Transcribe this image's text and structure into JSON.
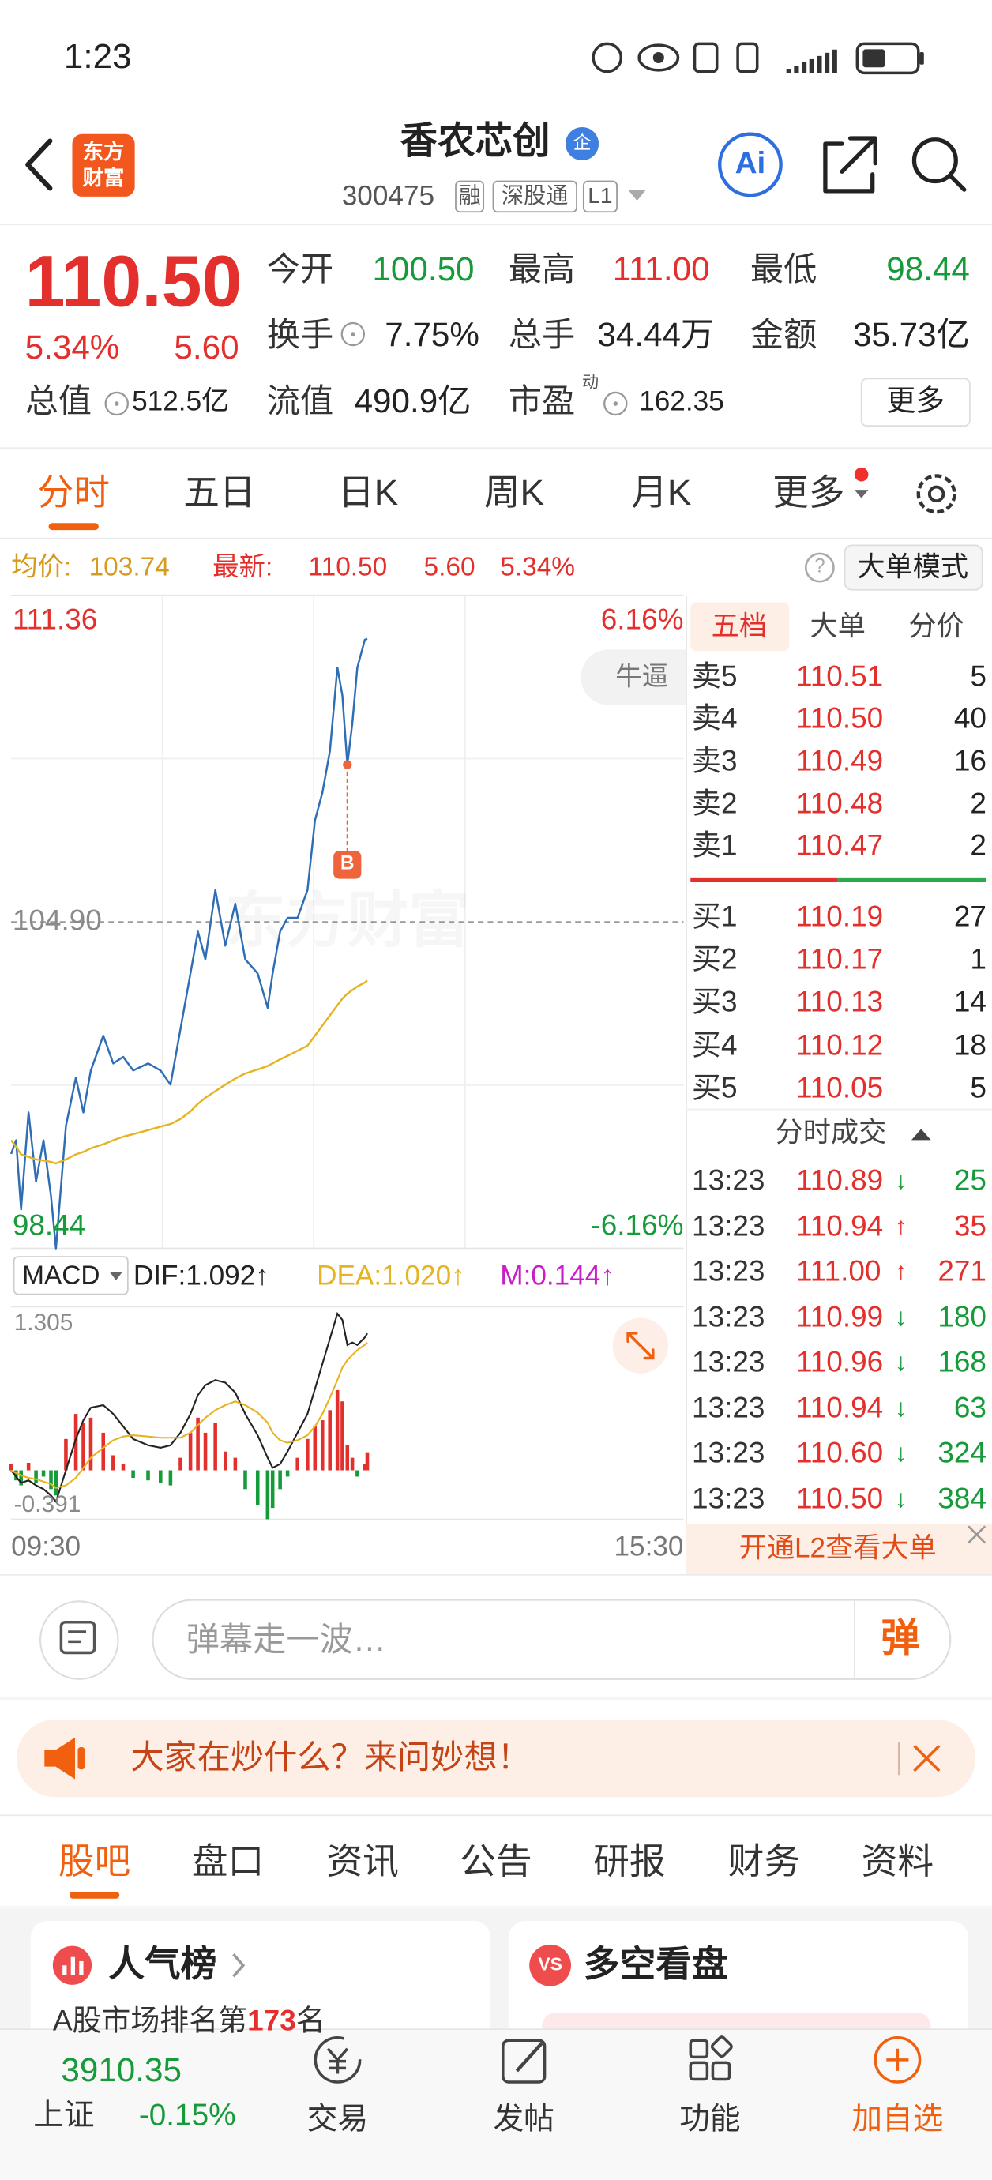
{
  "status_bar": {
    "time": "1:23"
  },
  "header": {
    "logo": [
      "东方",
      "财富"
    ],
    "title": "香农芯创",
    "badge": "企",
    "code": "300475",
    "tags": [
      "融",
      "深股通",
      "L1"
    ],
    "ai": "Ai"
  },
  "quote": {
    "price": "110.50",
    "change_pct": "5.34%",
    "change": "5.60",
    "stats": [
      {
        "label": "今开",
        "value": "100.50",
        "tone": "down"
      },
      {
        "label": "最高",
        "value": "111.00",
        "tone": "up"
      },
      {
        "label": "最低",
        "value": "98.44",
        "tone": "down"
      },
      {
        "label": "换手",
        "value": "7.75%"
      },
      {
        "label": "总手",
        "value": "34.44万"
      },
      {
        "label": "金额",
        "value": "35.73亿"
      },
      {
        "label": "总值",
        "value": "512.5亿"
      },
      {
        "label": "流值",
        "value": "490.9亿"
      },
      {
        "label": "市盈",
        "mark": "动",
        "value": "162.35"
      }
    ],
    "more": "更多"
  },
  "tabs": {
    "items": [
      "分时",
      "五日",
      "日K",
      "周K",
      "月K",
      "更多"
    ],
    "active": 0
  },
  "info": {
    "avg": "103.74",
    "last": "110.50",
    "change": "5.60",
    "change_pct": "5.34%",
    "help": "?",
    "mode": "大单模式"
  },
  "chart_data": [
    {
      "type": "line",
      "x": [
        "09:30",
        "09:32",
        "09:34",
        "09:37",
        "09:40",
        "09:43",
        "09:46",
        "09:48",
        "09:52",
        "09:56",
        "09:59",
        "10:02",
        "10:07",
        "10:11",
        "10:15",
        "10:19",
        "10:25",
        "10:30",
        "10:34",
        "10:38",
        "10:42",
        "10:45",
        "10:48",
        "10:52",
        "10:56",
        "11:00",
        "11:04",
        "11:09",
        "11:13",
        "11:15",
        "11:18",
        "11:21",
        "11:25",
        "11:29",
        "13:02",
        "13:05",
        "13:08",
        "13:11",
        "13:13",
        "13:15",
        "13:17",
        "13:19",
        "13:22",
        "13:23"
      ],
      "series": [
        {
          "name": "最新:",
          "color": "#2f6db5",
          "values": [
            100.31,
            100.58,
            99.21,
            101.13,
            99.76,
            100.58,
            99.48,
            98.44,
            100.86,
            101.82,
            101.13,
            101.96,
            102.65,
            102.1,
            102.23,
            101.96,
            102.1,
            101.96,
            101.68,
            102.78,
            103.88,
            104.71,
            104.16,
            105.53,
            104.43,
            105.26,
            104.16,
            103.88,
            103.2,
            103.88,
            104.71,
            104.98,
            104.98,
            105.53,
            106.91,
            107.46,
            108.28,
            109.93,
            109.38,
            108.01,
            108.83,
            109.93,
            110.48,
            110.5
          ]
        },
        {
          "name": "均价:",
          "color": "#e6b422",
          "values": [
            100.58,
            100.45,
            100.3,
            100.25,
            100.2,
            100.18,
            100.15,
            100.12,
            100.2,
            100.3,
            100.35,
            100.42,
            100.5,
            100.58,
            100.65,
            100.7,
            100.78,
            100.85,
            100.9,
            101.0,
            101.15,
            101.3,
            101.42,
            101.55,
            101.68,
            101.8,
            101.9,
            101.98,
            102.05,
            102.1,
            102.18,
            102.25,
            102.35,
            102.45,
            102.65,
            102.85,
            103.05,
            103.25,
            103.38,
            103.48,
            103.55,
            103.62,
            103.7,
            103.74
          ]
        }
      ],
      "xlim": [
        "09:30",
        "15:30"
      ],
      "ylim": [
        98.44,
        111.36
      ],
      "yticks": [
        98.44,
        {
          "value": 104.9,
          "label": "104.90"
        },
        111.36
      ],
      "y2lim": [
        -6.16,
        6.16
      ],
      "y2ticks": [
        {
          "value": -6.16,
          "label": "-6.16%"
        },
        {
          "value": 6.16,
          "label": "6.16%"
        }
      ],
      "annotations": [
        {
          "text": "B",
          "x": "13:15"
        }
      ],
      "grid": true
    },
    {
      "type": "bar",
      "title": "MACD",
      "x": [
        "09:30",
        "09:32",
        "09:34",
        "09:37",
        "09:40",
        "09:43",
        "09:46",
        "09:48",
        "09:52",
        "09:56",
        "09:59",
        "10:02",
        "10:07",
        "10:11",
        "10:15",
        "10:19",
        "10:25",
        "10:30",
        "10:34",
        "10:38",
        "10:42",
        "10:45",
        "10:48",
        "10:52",
        "10:56",
        "11:00",
        "11:04",
        "11:09",
        "11:13",
        "11:15",
        "11:18",
        "11:21",
        "11:25",
        "11:29",
        "13:02",
        "13:05",
        "13:08",
        "13:11",
        "13:13",
        "13:15",
        "13:17",
        "13:19",
        "13:22",
        "13:23"
      ],
      "series": [
        {
          "name": "DIF:1.092↑",
          "type": "line",
          "color": "#222222",
          "values": [
            0.0,
            -0.05,
            -0.1,
            -0.08,
            -0.12,
            -0.15,
            -0.2,
            -0.25,
            0.0,
            0.25,
            0.4,
            0.5,
            0.52,
            0.45,
            0.35,
            0.25,
            0.2,
            0.18,
            0.2,
            0.3,
            0.45,
            0.6,
            0.68,
            0.72,
            0.7,
            0.62,
            0.45,
            0.28,
            0.1,
            0.02,
            0.05,
            0.15,
            0.3,
            0.45,
            0.65,
            0.85,
            1.05,
            1.25,
            1.2,
            1.0,
            1.02,
            1.0,
            1.06,
            1.092
          ]
        },
        {
          "name": "DEA:1.020↑",
          "type": "line",
          "color": "#e6b422",
          "values": [
            0.0,
            -0.02,
            -0.04,
            -0.06,
            -0.07,
            -0.09,
            -0.11,
            -0.14,
            -0.12,
            -0.06,
            0.02,
            0.1,
            0.18,
            0.24,
            0.27,
            0.28,
            0.27,
            0.26,
            0.26,
            0.26,
            0.3,
            0.36,
            0.42,
            0.48,
            0.52,
            0.55,
            0.52,
            0.46,
            0.38,
            0.3,
            0.24,
            0.22,
            0.24,
            0.28,
            0.35,
            0.45,
            0.58,
            0.72,
            0.82,
            0.88,
            0.92,
            0.96,
            1.0,
            1.02
          ]
        },
        {
          "name": "M:0.144↑",
          "type": "bar",
          "color": "#c81ec8",
          "up_color": "#e4302c",
          "down_color": "#179b3a",
          "values": [
            0.05,
            -0.08,
            -0.12,
            0.06,
            -0.1,
            -0.05,
            -0.15,
            -0.2,
            0.25,
            0.45,
            0.38,
            0.42,
            0.3,
            0.12,
            0.05,
            -0.06,
            -0.08,
            -0.1,
            -0.12,
            0.1,
            0.3,
            0.42,
            0.3,
            0.38,
            0.15,
            0.1,
            -0.15,
            -0.28,
            -0.39,
            -0.3,
            -0.15,
            -0.05,
            0.1,
            0.25,
            0.35,
            0.4,
            0.48,
            0.64,
            0.55,
            0.2,
            0.1,
            -0.05,
            0.05,
            0.144
          ]
        }
      ],
      "xlim": [
        "09:30",
        "15:30"
      ],
      "xticks": [
        "09:30",
        "15:30"
      ],
      "ylim": [
        -0.391,
        1.305
      ],
      "yticks": [
        -0.391,
        1.305
      ]
    }
  ],
  "watermark": "东方财富",
  "danmaku": "牛逼",
  "order_book": {
    "tabs": [
      "五档",
      "大单",
      "分价"
    ],
    "active": 0,
    "asks": [
      {
        "label": "卖5",
        "price": "110.51",
        "vol": "5"
      },
      {
        "label": "卖4",
        "price": "110.50",
        "vol": "40"
      },
      {
        "label": "卖3",
        "price": "110.49",
        "vol": "16"
      },
      {
        "label": "卖2",
        "price": "110.48",
        "vol": "2"
      },
      {
        "label": "卖1",
        "price": "110.47",
        "vol": "2"
      }
    ],
    "bids": [
      {
        "label": "买1",
        "price": "110.19",
        "vol": "27"
      },
      {
        "label": "买2",
        "price": "110.17",
        "vol": "1"
      },
      {
        "label": "买3",
        "price": "110.13",
        "vol": "14"
      },
      {
        "label": "买4",
        "price": "110.12",
        "vol": "18"
      },
      {
        "label": "买5",
        "price": "110.05",
        "vol": "5"
      }
    ]
  },
  "trades": {
    "title": "分时成交",
    "rows": [
      {
        "time": "13:23",
        "price": "110.89",
        "dir": "↓",
        "vol": "25"
      },
      {
        "time": "13:23",
        "price": "110.94",
        "dir": "↑",
        "vol": "35"
      },
      {
        "time": "13:23",
        "price": "111.00",
        "dir": "↑",
        "vol": "271"
      },
      {
        "time": "13:23",
        "price": "110.99",
        "dir": "↓",
        "vol": "180"
      },
      {
        "time": "13:23",
        "price": "110.96",
        "dir": "↓",
        "vol": "168"
      },
      {
        "time": "13:23",
        "price": "110.94",
        "dir": "↓",
        "vol": "63"
      },
      {
        "time": "13:23",
        "price": "110.60",
        "dir": "↓",
        "vol": "324"
      },
      {
        "time": "13:23",
        "price": "110.50",
        "dir": "↓",
        "vol": "384"
      }
    ]
  },
  "l2_banner": "开通L2查看大单",
  "comment": {
    "placeholder": "弹幕走一波…",
    "button": "弹"
  },
  "banner": "大家在炒什么？来问妙想！",
  "section_tabs": {
    "items": [
      "股吧",
      "盘口",
      "资讯",
      "公告",
      "研报",
      "财务",
      "资料"
    ],
    "active": 0
  },
  "cards": [
    {
      "title": "人气榜",
      "text": [
        "A股市场排名第",
        "173",
        "名"
      ]
    },
    {
      "icon": "VS",
      "title": "多空看盘"
    }
  ],
  "nav": {
    "index": {
      "value": "3910.35",
      "name": "上证",
      "change": "-0.15%"
    },
    "items": [
      "交易",
      "发帖",
      "功能",
      "加自选"
    ]
  }
}
